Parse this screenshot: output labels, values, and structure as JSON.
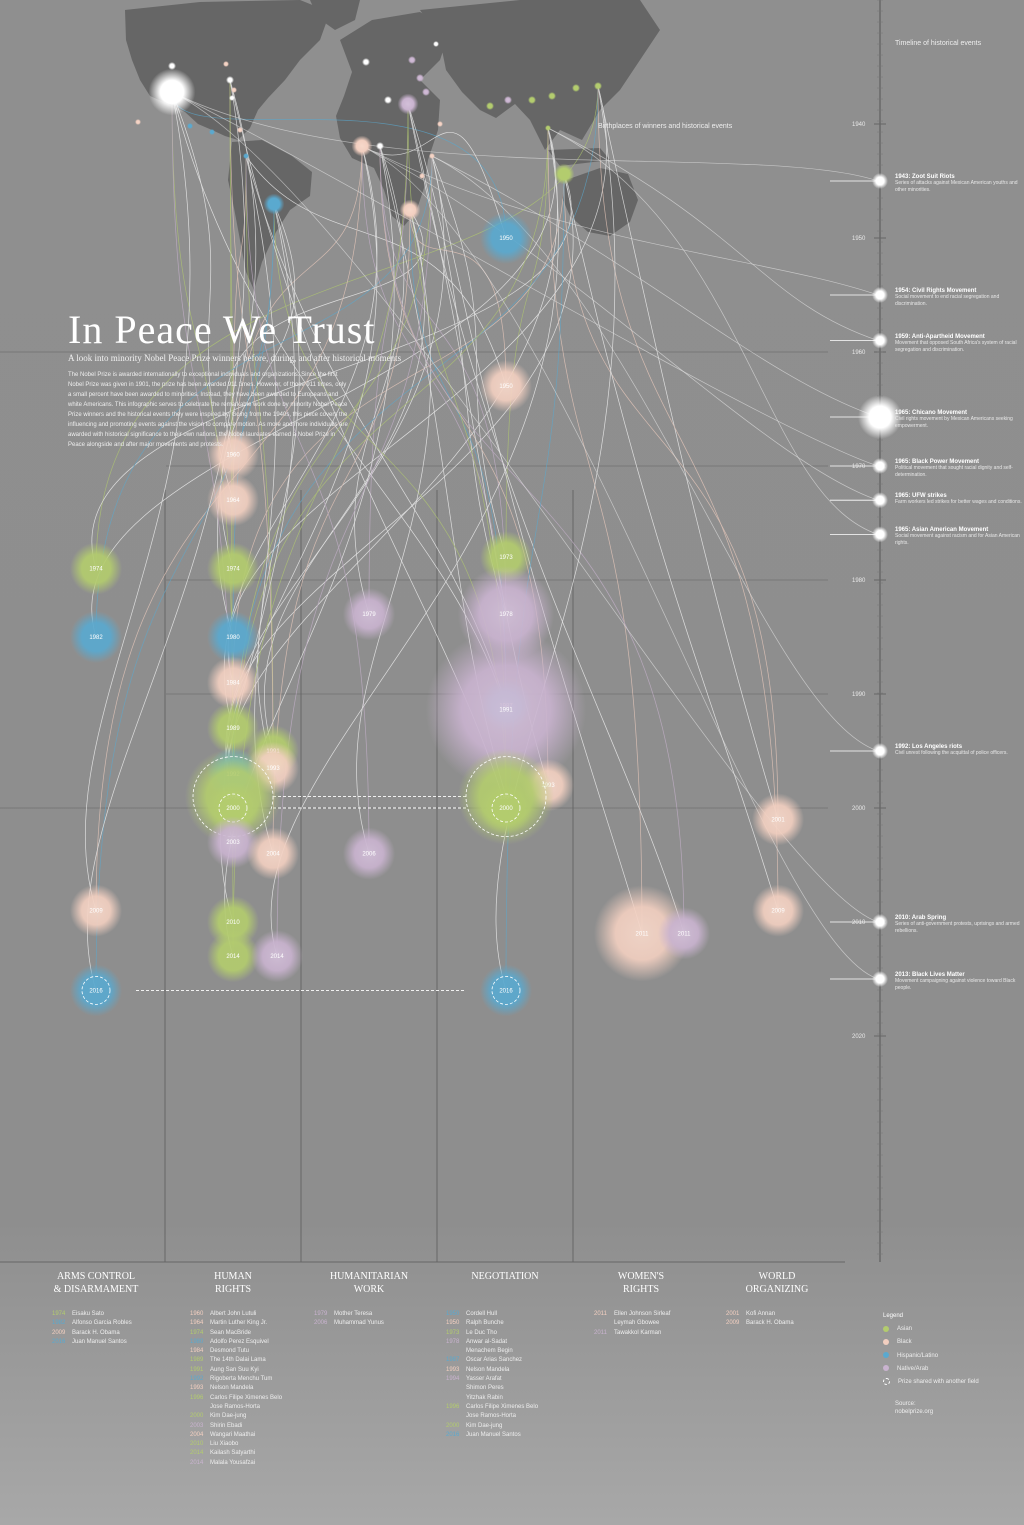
{
  "title": "In Peace We Trust",
  "subtitle": "A look into minority Nobel Peace Prize winners before, during, and after historical moments",
  "intro": "The Nobel Prize is awarded internationally to exceptional individuals and organizations. Since the first Nobel Prize was given in 1901, the prize has been awarded 911 times. However, of those 911 times, only a small percent have been awarded to minorities. Instead, they have been awarded to Europeans and white Americans. This infographic serves to celebrate the remarkable work done by minority Nobel Peace Prize winners and the historical events they were inspired by. Going from the 1940s, this piece covers the influencing and promoting events against the vision to compare motion. As more and more individuals are awarded with historical significance to their own nations, the Nobel laureates earned a Nobel Prize in Peace alongside and after major movements and protests.",
  "map_labels": {
    "timeline": "Timeline of historical events",
    "birthplaces": "Birthplaces of winners and historical events"
  },
  "colors": {
    "asian": "#b3cc6e",
    "black": "#f2cfc0",
    "hispanic": "#5aa9cf",
    "native": "#c9b3cf",
    "line": "#ffffff",
    "map": "#666666"
  },
  "chart_data": {
    "type": "scatter",
    "categories": [
      "ARMS CONTROL & DISARMAMENT",
      "HUMAN RIGHTS",
      "HUMANITARIAN WORK",
      "NEGOTIATION",
      "WOMEN'S RIGHTS",
      "WORLD ORGANIZING"
    ],
    "y_axis": {
      "ticks": [
        1940,
        1950,
        1960,
        1970,
        1980,
        1990,
        2000,
        2010,
        2020
      ],
      "ylim": [
        1943,
        2020
      ]
    },
    "points": [
      {
        "label": "1950",
        "category": "NEGOTIATION",
        "year": 1950,
        "group": "hispanic",
        "size": 1
      },
      {
        "label": "1950",
        "category": "NEGOTIATION",
        "year": 1963,
        "group": "black",
        "size": 1
      },
      {
        "label": "1960",
        "category": "HUMAN RIGHTS",
        "year": 1969,
        "group": "black",
        "size": 1
      },
      {
        "label": "1964",
        "category": "HUMAN RIGHTS",
        "year": 1973,
        "group": "black",
        "size": 1
      },
      {
        "label": "1974",
        "category": "ARMS CONTROL & DISARMAMENT",
        "year": 1979,
        "group": "asian",
        "size": 1
      },
      {
        "label": "1974",
        "category": "HUMAN RIGHTS",
        "year": 1979,
        "group": "asian",
        "size": 1
      },
      {
        "label": "1973",
        "category": "NEGOTIATION",
        "year": 1978,
        "group": "asian",
        "size": 1
      },
      {
        "label": "1978",
        "category": "NEGOTIATION",
        "year": 1983,
        "group": "native",
        "size": 3
      },
      {
        "label": "1979",
        "category": "HUMANITARIAN WORK",
        "year": 1983,
        "group": "native",
        "size": 1
      },
      {
        "label": "1982",
        "category": "ARMS CONTROL & DISARMAMENT",
        "year": 1985,
        "group": "hispanic",
        "size": 1
      },
      {
        "label": "1980",
        "category": "HUMAN RIGHTS",
        "year": 1985,
        "group": "hispanic",
        "size": 1
      },
      {
        "label": "1984",
        "category": "HUMAN RIGHTS",
        "year": 1989,
        "group": "black",
        "size": 1
      },
      {
        "label": "1989",
        "category": "HUMAN RIGHTS",
        "year": 1993,
        "group": "asian",
        "size": 1
      },
      {
        "label": "1987",
        "category": "NEGOTIATION",
        "year": 1991,
        "group": "hispanic",
        "size": 1
      },
      {
        "label": "1991",
        "category": "HUMAN RIGHTS",
        "year": 1995,
        "group": "asian",
        "size": 1
      },
      {
        "label": "1991",
        "category": "NEGOTIATION",
        "year": 1994,
        "group": "native",
        "size": 5
      },
      {
        "label": "1992",
        "category": "HUMAN RIGHTS",
        "year": 1997,
        "group": "hispanic",
        "size": 1
      },
      {
        "label": "1993",
        "category": "HUMAN RIGHTS",
        "year": 1997,
        "group": "black",
        "size": 1
      },
      {
        "label": "1996",
        "category": "HUMAN RIGHTS",
        "year": 1999,
        "group": "asian",
        "size": 3,
        "shared": true
      },
      {
        "label": "1993",
        "category": "NEGOTIATION",
        "year": 1998,
        "group": "black",
        "size": 1
      },
      {
        "label": "1996",
        "category": "NEGOTIATION",
        "year": 1999,
        "group": "asian",
        "size": 3,
        "shared": true
      },
      {
        "label": "2000",
        "category": "HUMAN RIGHTS",
        "year": 2000,
        "group": "asian",
        "size": 1,
        "shared": true
      },
      {
        "label": "2000",
        "category": "NEGOTIATION",
        "year": 2000,
        "group": "asian",
        "size": 1,
        "shared": true
      },
      {
        "label": "2001",
        "category": "WORLD ORGANIZING",
        "year": 2001,
        "group": "black",
        "size": 1
      },
      {
        "label": "2003",
        "category": "HUMAN RIGHTS",
        "year": 2003,
        "group": "native",
        "size": 1
      },
      {
        "label": "2004",
        "category": "HUMAN RIGHTS",
        "year": 2004,
        "group": "black",
        "size": 1
      },
      {
        "label": "2006",
        "category": "HUMANITARIAN WORK",
        "year": 2004,
        "group": "native",
        "size": 1
      },
      {
        "label": "2009",
        "category": "ARMS CONTROL & DISARMAMENT",
        "year": 2009,
        "group": "black",
        "size": 1
      },
      {
        "label": "2009",
        "category": "WORLD ORGANIZING",
        "year": 2009,
        "group": "black",
        "size": 1
      },
      {
        "label": "2010",
        "category": "HUMAN RIGHTS",
        "year": 2010,
        "group": "asian",
        "size": 1
      },
      {
        "label": "2011",
        "category": "WOMEN'S RIGHTS",
        "year": 2011,
        "group": "black",
        "size": 3
      },
      {
        "label": "2011",
        "category": "WOMEN'S RIGHTS",
        "year": 2011,
        "group": "native",
        "size": 1
      },
      {
        "label": "2014",
        "category": "HUMAN RIGHTS",
        "year": 2013,
        "group": "asian",
        "size": 1
      },
      {
        "label": "2014",
        "category": "HUMAN RIGHTS",
        "year": 2013,
        "group": "native",
        "size": 1
      },
      {
        "label": "2016",
        "category": "ARMS CONTROL & DISARMAMENT",
        "year": 2016,
        "group": "hispanic",
        "size": 1,
        "shared": true
      },
      {
        "label": "2016",
        "category": "NEGOTIATION",
        "year": 2016,
        "group": "hispanic",
        "size": 1,
        "shared": true
      }
    ],
    "events": [
      {
        "year": 1945,
        "title": "1943: Zoot Suit Riots",
        "desc": "Series of attacks against Mexican American youths and other minorities."
      },
      {
        "year": 1955,
        "title": "1954: Civil Rights Movement",
        "desc": "Social movement to end racial segregation and discrimination."
      },
      {
        "year": 1959,
        "title": "1959: Anti-Apartheid Movement",
        "desc": "Movement that opposed South Africa's system of racial segregation and discrimination."
      },
      {
        "year": 1965,
        "title": "1965: Chicano Movement",
        "desc": "Civil rights movement by Mexican Americans seeking empowerment.",
        "size": 3
      },
      {
        "year": 1970,
        "title": "1965: Black Power Movement",
        "desc": "Political movement that sought racial dignity and self-determination."
      },
      {
        "year": 1973,
        "title": "1965: UFW strikes",
        "desc": "Farm workers led strikes for better wages and conditions."
      },
      {
        "year": 1976,
        "title": "1965: Asian American Movement",
        "desc": "Social movement against racism and for Asian American rights."
      },
      {
        "year": 1995,
        "title": "1992: Los Angeles riots",
        "desc": "Civil unrest following the acquittal of police officers."
      },
      {
        "year": 2010,
        "title": "2010: Arab Spring",
        "desc": "Series of anti-government protests, uprisings and armed rebellions."
      },
      {
        "year": 2015,
        "title": "2013: Black Lives Matter",
        "desc": "Movement campaigning against violence toward Black people."
      }
    ]
  },
  "winners": [
    [
      {
        "year": "1974",
        "name": "Eisaku Sato",
        "group": "asian"
      },
      {
        "year": "1982",
        "name": "Alfonso Garcia Robles",
        "group": "hispanic"
      },
      {
        "year": "2009",
        "name": "Barack H. Obama",
        "group": "black"
      },
      {
        "year": "2016",
        "name": "Juan Manuel Santos",
        "group": "hispanic"
      }
    ],
    [
      {
        "year": "1960",
        "name": "Albert John Lutuli",
        "group": "black"
      },
      {
        "year": "1964",
        "name": "Martin Luther King Jr.",
        "group": "black"
      },
      {
        "year": "1974",
        "name": "Sean MacBride",
        "group": "asian"
      },
      {
        "year": "1980",
        "name": "Adolfo Perez Esquivel",
        "group": "hispanic"
      },
      {
        "year": "1984",
        "name": "Desmond Tutu",
        "group": "black"
      },
      {
        "year": "1989",
        "name": "The 14th Dalai Lama",
        "group": "asian"
      },
      {
        "year": "1991",
        "name": "Aung San Suu Kyi",
        "group": "asian"
      },
      {
        "year": "1992",
        "name": "Rigoberta Menchu Tum",
        "group": "hispanic"
      },
      {
        "year": "1993",
        "name": "Nelson Mandela",
        "group": "black"
      },
      {
        "year": "1996",
        "name": "Carlos Filipe Ximenes Belo",
        "group": "asian"
      },
      {
        "year": "",
        "name": "Jose Ramos-Horta",
        "group": "asian"
      },
      {
        "year": "2000",
        "name": "Kim Dae-jung",
        "group": "asian"
      },
      {
        "year": "2003",
        "name": "Shirin Ebadi",
        "group": "native"
      },
      {
        "year": "2004",
        "name": "Wangari Maathai",
        "group": "black"
      },
      {
        "year": "2010",
        "name": "Liu Xiaobo",
        "group": "asian"
      },
      {
        "year": "2014",
        "name": "Kailash Satyarthi",
        "group": "asian"
      },
      {
        "year": "2014",
        "name": "Malala Yousafzai",
        "group": "native"
      }
    ],
    [
      {
        "year": "1979",
        "name": "Mother Teresa",
        "group": "native"
      },
      {
        "year": "2006",
        "name": "Muhammad Yunus",
        "group": "native"
      }
    ],
    [
      {
        "year": "1950",
        "name": "Cordell Hull",
        "group": "hispanic"
      },
      {
        "year": "1950",
        "name": "Ralph Bunche",
        "group": "black"
      },
      {
        "year": "1973",
        "name": "Le Duc Tho",
        "group": "asian"
      },
      {
        "year": "1978",
        "name": "Anwar al-Sadat",
        "group": "native"
      },
      {
        "year": "",
        "name": "Menachem Begin",
        "group": "native"
      },
      {
        "year": "1987",
        "name": "Oscar Arias Sanchez",
        "group": "hispanic"
      },
      {
        "year": "1993",
        "name": "Nelson Mandela",
        "group": "black"
      },
      {
        "year": "1994",
        "name": "Yasser Arafat",
        "group": "native"
      },
      {
        "year": "",
        "name": "Shimon Peres",
        "group": "native"
      },
      {
        "year": "",
        "name": "Yitzhak Rabin",
        "group": "native"
      },
      {
        "year": "1996",
        "name": "Carlos Filipe Ximenes Belo",
        "group": "asian"
      },
      {
        "year": "",
        "name": "Jose Ramos-Horta",
        "group": "asian"
      },
      {
        "year": "2000",
        "name": "Kim Dae-jung",
        "group": "asian"
      },
      {
        "year": "2016",
        "name": "Juan Manuel Santos",
        "group": "hispanic"
      }
    ],
    [
      {
        "year": "2011",
        "name": "Ellen Johnson Sirleaf",
        "group": "black"
      },
      {
        "year": "",
        "name": "Leymah Gbowee",
        "group": "black"
      },
      {
        "year": "2011",
        "name": "Tawakkol Karman",
        "group": "native"
      }
    ],
    [
      {
        "year": "2001",
        "name": "Kofi Annan",
        "group": "black"
      },
      {
        "year": "2009",
        "name": "Barack H. Obama",
        "group": "black"
      }
    ]
  ],
  "legend": {
    "title": "Legend",
    "items": [
      {
        "label": "Asian",
        "group": "asian"
      },
      {
        "label": "Black",
        "group": "black"
      },
      {
        "label": "Hispanic/Latino",
        "group": "hispanic"
      },
      {
        "label": "Native/Arab",
        "group": "native"
      }
    ],
    "shared": "Prize shared with another field"
  },
  "credit": {
    "line1": "Source:",
    "line2": "nobelprize.org"
  }
}
